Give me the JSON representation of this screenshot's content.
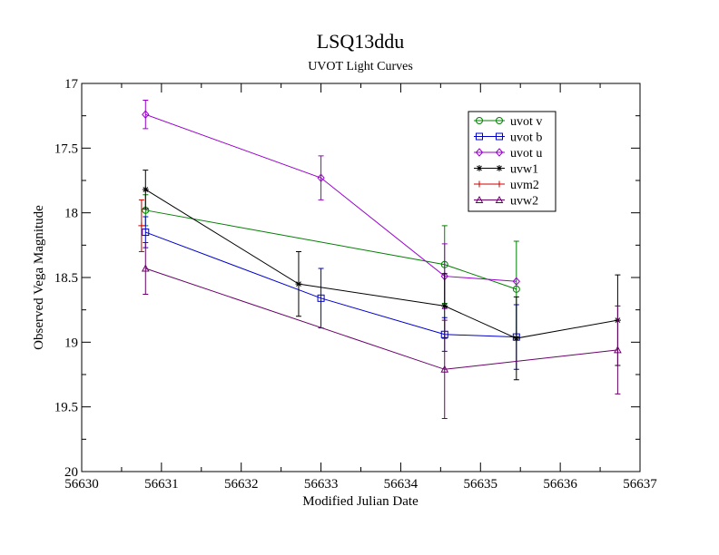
{
  "chart_data": {
    "type": "line",
    "title": "LSQ13ddu",
    "subtitle": "UVOT Light Curves",
    "xlabel": "Modified Julian Date",
    "ylabel": "Observed Vega Magnitude",
    "xlim": [
      56630,
      56637
    ],
    "ylim": [
      17,
      20
    ],
    "y_inverted": true,
    "grid": false,
    "legend_position": "top-right",
    "x_ticks": [
      56630,
      56631,
      56632,
      56633,
      56634,
      56635,
      56636,
      56637
    ],
    "y_ticks": [
      17,
      17.5,
      18,
      18.5,
      19,
      19.5,
      20
    ],
    "y_tick_labels": [
      "17",
      "17.5",
      "18",
      "18.5",
      "19",
      "19.5",
      "20"
    ],
    "series": [
      {
        "name": "uvot v",
        "color": "#008000",
        "marker": "circle",
        "points": [
          {
            "x": 56630.8,
            "y": 17.98,
            "err": 0.12
          },
          {
            "x": 56634.55,
            "y": 18.4,
            "err": 0.3
          },
          {
            "x": 56635.45,
            "y": 18.59,
            "err": 0.37
          }
        ]
      },
      {
        "name": "uvot b",
        "color": "#0000cc",
        "marker": "square",
        "points": [
          {
            "x": 56630.8,
            "y": 18.15,
            "err": 0.12
          },
          {
            "x": 56633.0,
            "y": 18.66,
            "err": 0.23
          },
          {
            "x": 56634.55,
            "y": 18.94,
            "err": 0.13
          },
          {
            "x": 56635.45,
            "y": 18.96,
            "err": 0.25
          }
        ]
      },
      {
        "name": "uvot u",
        "color": "#9900cc",
        "marker": "diamond",
        "points": [
          {
            "x": 56630.8,
            "y": 17.24,
            "err": 0.11
          },
          {
            "x": 56633.0,
            "y": 17.73,
            "err": 0.17
          },
          {
            "x": 56634.55,
            "y": 18.49,
            "err": 0.25
          },
          {
            "x": 56635.45,
            "y": 18.53,
            "err": 0.0
          }
        ]
      },
      {
        "name": "uvw1",
        "color": "#000000",
        "marker": "star",
        "points": [
          {
            "x": 56630.8,
            "y": 17.82,
            "err": 0.15
          },
          {
            "x": 56632.72,
            "y": 18.55,
            "err": 0.25
          },
          {
            "x": 56634.55,
            "y": 18.72,
            "err": 0.25
          },
          {
            "x": 56635.45,
            "y": 18.97,
            "err": 0.32
          },
          {
            "x": 56636.72,
            "y": 18.83,
            "err": 0.35
          }
        ]
      },
      {
        "name": "uvm2",
        "color": "#cc0000",
        "marker": "plus",
        "points": [
          {
            "x": 56630.75,
            "y": 18.1,
            "err": 0.2
          }
        ]
      },
      {
        "name": "uvw2",
        "color": "#6a006a",
        "marker": "triangle",
        "points": [
          {
            "x": 56630.8,
            "y": 18.43,
            "err": 0.2
          },
          {
            "x": 56634.55,
            "y": 19.21,
            "err": 0.38
          },
          {
            "x": 56636.72,
            "y": 19.06,
            "err": 0.34
          }
        ]
      }
    ]
  }
}
